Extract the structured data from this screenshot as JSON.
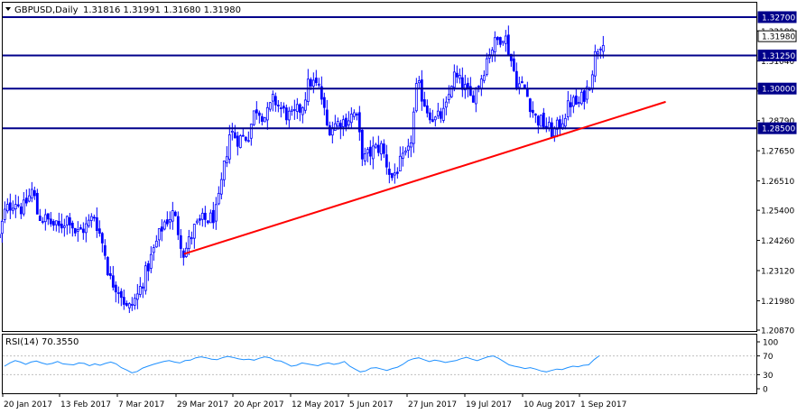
{
  "header": {
    "symbol": "GBPUSD,Daily",
    "ohlc": "1.31816 1.31991 1.31680 1.31980"
  },
  "colors": {
    "background": "#ffffff",
    "frame": "#000000",
    "candle": "#0000ff",
    "hline": "#00008b",
    "trendline": "#ff0000",
    "rsi_line": "#1e90ff",
    "rsi_levels": "#c0c0c0",
    "price_tag_bg": "#00008b",
    "price_tag_text": "#ffffff"
  },
  "chart_data": [
    {
      "type": "candlestick",
      "title": "",
      "instrument": "GBPUSD",
      "timeframe": "Daily",
      "last_ohlc": {
        "open": 1.31816,
        "high": 1.31991,
        "low": 1.3168,
        "close": 1.3198
      },
      "ylim": [
        1.2087,
        1.327
      ],
      "y_ticks": [
        "1.32180",
        "1.31040",
        "1.29910",
        "1.28790",
        "1.27650",
        "1.26510",
        "1.25400",
        "1.24260",
        "1.23120",
        "1.21980",
        "1.20870"
      ],
      "x_ticks": [
        "20 Jan 2017",
        "13 Feb 2017",
        "7 Mar 2017",
        "29 Mar 2017",
        "20 Apr 2017",
        "12 May 2017",
        "5 Jun 2017",
        "27 Jun 2017",
        "19 Jul 2017",
        "10 Aug 2017",
        "1 Sep 2017"
      ],
      "horizontal_levels": [
        {
          "label": "1.32700",
          "value": 1.327
        },
        {
          "label": "1.31250",
          "value": 1.3125
        },
        {
          "label": "1.30000",
          "value": 1.3
        },
        {
          "label": "1.28500",
          "value": 1.285
        }
      ],
      "current_price": {
        "label": "1.31980",
        "value": 1.3198
      },
      "trendline": {
        "from": {
          "date": "2017-03-31",
          "value": 1.2375
        },
        "to": {
          "date": "2017-10-05",
          "value": 1.295
        }
      },
      "close_path": [
        [
          "2017-01-18",
          1.244
        ],
        [
          "2017-01-20",
          1.253
        ],
        [
          "2017-01-24",
          1.258
        ],
        [
          "2017-01-27",
          1.254
        ],
        [
          "2017-01-31",
          1.262
        ],
        [
          "2017-02-02",
          1.252
        ],
        [
          "2017-02-06",
          1.25
        ],
        [
          "2017-02-10",
          1.247
        ],
        [
          "2017-02-14",
          1.252
        ],
        [
          "2017-02-17",
          1.245
        ],
        [
          "2017-02-21",
          1.248
        ],
        [
          "2017-02-24",
          1.252
        ],
        [
          "2017-02-28",
          1.239
        ],
        [
          "2017-03-02",
          1.228
        ],
        [
          "2017-03-06",
          1.224
        ],
        [
          "2017-03-09",
          1.216
        ],
        [
          "2017-03-13",
          1.222
        ],
        [
          "2017-03-16",
          1.23
        ],
        [
          "2017-03-20",
          1.241
        ],
        [
          "2017-03-23",
          1.249
        ],
        [
          "2017-03-27",
          1.253
        ],
        [
          "2017-03-31",
          1.2375
        ],
        [
          "2017-04-04",
          1.247
        ],
        [
          "2017-04-07",
          1.25
        ],
        [
          "2017-04-11",
          1.251
        ],
        [
          "2017-04-13",
          1.254
        ],
        [
          "2017-04-18",
          1.284
        ],
        [
          "2017-04-21",
          1.281
        ],
        [
          "2017-04-25",
          1.282
        ],
        [
          "2017-04-28",
          1.293
        ],
        [
          "2017-05-02",
          1.289
        ],
        [
          "2017-05-05",
          1.296
        ],
        [
          "2017-05-09",
          1.291
        ],
        [
          "2017-05-12",
          1.289
        ],
        [
          "2017-05-16",
          1.293
        ],
        [
          "2017-05-19",
          1.303
        ],
        [
          "2017-05-23",
          1.3
        ],
        [
          "2017-05-26",
          1.285
        ],
        [
          "2017-05-30",
          1.287
        ],
        [
          "2017-06-02",
          1.288
        ],
        [
          "2017-06-06",
          1.291
        ],
        [
          "2017-06-09",
          1.273
        ],
        [
          "2017-06-13",
          1.277
        ],
        [
          "2017-06-16",
          1.278
        ],
        [
          "2017-06-20",
          1.266
        ],
        [
          "2017-06-23",
          1.271
        ],
        [
          "2017-06-27",
          1.276
        ],
        [
          "2017-06-30",
          1.302
        ],
        [
          "2017-07-04",
          1.292
        ],
        [
          "2017-07-07",
          1.288
        ],
        [
          "2017-07-11",
          1.291
        ],
        [
          "2017-07-14",
          1.305
        ],
        [
          "2017-07-18",
          1.301
        ],
        [
          "2017-07-21",
          1.296
        ],
        [
          "2017-07-25",
          1.304
        ],
        [
          "2017-07-28",
          1.314
        ],
        [
          "2017-08-01",
          1.319
        ],
        [
          "2017-08-03",
          1.321
        ],
        [
          "2017-08-08",
          1.302
        ],
        [
          "2017-08-11",
          1.3
        ],
        [
          "2017-08-15",
          1.289
        ],
        [
          "2017-08-18",
          1.287
        ],
        [
          "2017-08-22",
          1.283
        ],
        [
          "2017-08-25",
          1.287
        ],
        [
          "2017-08-29",
          1.295
        ],
        [
          "2017-09-01",
          1.294
        ],
        [
          "2017-09-05",
          1.301
        ],
        [
          "2017-09-08",
          1.315
        ],
        [
          "2017-09-11",
          1.3198
        ]
      ]
    },
    {
      "type": "line",
      "title": "RSI(14) 70.3550",
      "ylim": [
        0,
        100
      ],
      "y_ticks": [
        "100",
        "70",
        "30",
        "0"
      ],
      "levels": [
        70,
        30
      ],
      "series": [
        {
          "name": "RSI(14)",
          "values": [
            48,
            55,
            60,
            57,
            52,
            57,
            59,
            55,
            52,
            54,
            58,
            53,
            52,
            51,
            55,
            54,
            49,
            53,
            50,
            54,
            57,
            53,
            45,
            40,
            34,
            37,
            44,
            48,
            52,
            55,
            58,
            60,
            57,
            55,
            60,
            61,
            66,
            68,
            66,
            63,
            62,
            66,
            69,
            67,
            64,
            62,
            63,
            61,
            65,
            68,
            66,
            60,
            59,
            54,
            48,
            50,
            55,
            53,
            51,
            49,
            53,
            55,
            52,
            54,
            58,
            48,
            42,
            36,
            38,
            44,
            45,
            42,
            39,
            43,
            46,
            52,
            60,
            64,
            66,
            62,
            58,
            61,
            59,
            56,
            58,
            60,
            64,
            67,
            63,
            60,
            64,
            68,
            70,
            65,
            58,
            51,
            48,
            46,
            43,
            45,
            42,
            38,
            36,
            39,
            42,
            41,
            45,
            48,
            47,
            50,
            51,
            62,
            70.355
          ]
        }
      ]
    }
  ]
}
